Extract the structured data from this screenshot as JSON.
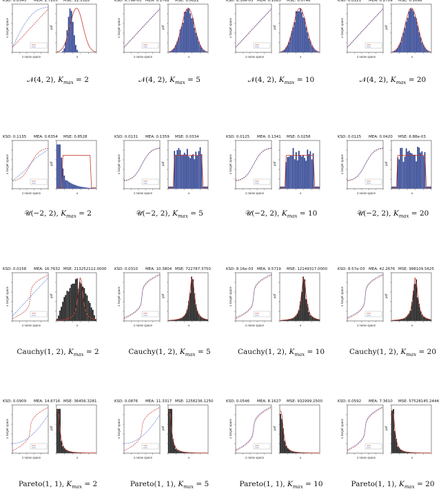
{
  "figure": {
    "panels": [
      {
        "stats": {
          "ksd": "KSD: 0.0545",
          "mea": "MEA: 2.7205",
          "mse": "MSE: 11.5528"
        },
        "dist": "𝒩(4, 2)",
        "kmax": "2",
        "pdf_shape": "normal",
        "fit": "skewed"
      },
      {
        "stats": {
          "ksd": "KSD: 6.78e-03",
          "mea": "MEA: 0.1762",
          "mse": "MSE: 0.0622"
        },
        "dist": "𝒩(4, 2)",
        "kmax": "5",
        "pdf_shape": "normal",
        "fit": "good"
      },
      {
        "stats": {
          "ksd": "KSD: 8.30e-03",
          "mea": "MEA: 0.1085",
          "mse": "MSE: 0.0748"
        },
        "dist": "𝒩(4, 2)",
        "kmax": "10",
        "pdf_shape": "normal",
        "fit": "good"
      },
      {
        "stats": {
          "ksd": "KSD: 0.0121",
          "mea": "MEA: 0.2709",
          "mse": "MSE: 0.1698"
        },
        "dist": "𝒩(4, 2)",
        "kmax": "20",
        "pdf_shape": "normal",
        "fit": "good"
      },
      {
        "stats": {
          "ksd": "KSD: 0.1135",
          "mea": "MEA: 0.6354",
          "mse": "MSE: 0.8528"
        },
        "dist": "𝒰(−2, 2)",
        "kmax": "2",
        "pdf_shape": "uniform",
        "fit": "skewed"
      },
      {
        "stats": {
          "ksd": "KSD: 0.0131",
          "mea": "MEA: 0.1359",
          "mse": "MSE: 0.0334"
        },
        "dist": "𝒰(−2, 2)",
        "kmax": "5",
        "pdf_shape": "uniform",
        "fit": "good"
      },
      {
        "stats": {
          "ksd": "KSD: 0.0125",
          "mea": "MEA: 0.1341",
          "mse": "MSE: 0.0258"
        },
        "dist": "𝒰(−2, 2)",
        "kmax": "10",
        "pdf_shape": "uniform",
        "fit": "good"
      },
      {
        "stats": {
          "ksd": "KSD: 0.0125",
          "mea": "MEA: 0.0420",
          "mse": "MSE: 6.88e-03"
        },
        "dist": "𝒰(−2, 2)",
        "kmax": "20",
        "pdf_shape": "uniform",
        "fit": "good"
      },
      {
        "stats": {
          "ksd": "KSD: 0.0158",
          "mea": "MEA: 16.7632",
          "mse": "MSE: 213252112.0000"
        },
        "dist": "Cauchy(1, 2)",
        "kmax": "2",
        "pdf_shape": "cauchy",
        "fit": "skewed"
      },
      {
        "stats": {
          "ksd": "KSD: 0.0310",
          "mea": "MEA: 10.3804",
          "mse": "MSE: 722787.3750"
        },
        "dist": "Cauchy(1, 2)",
        "kmax": "5",
        "pdf_shape": "cauchy",
        "fit": "good"
      },
      {
        "stats": {
          "ksd": "KSD: 8.16e-03",
          "mea": "MEA: 9.5719",
          "mse": "MSE: 12149317.0000"
        },
        "dist": "Cauchy(1, 2)",
        "kmax": "10",
        "pdf_shape": "cauchy",
        "fit": "good"
      },
      {
        "stats": {
          "ksd": "KSD: 8.57e-03",
          "mea": "MEA: 42.2676",
          "mse": "MSE: 998109.5625"
        },
        "dist": "Cauchy(1, 2)",
        "kmax": "20",
        "pdf_shape": "cauchy",
        "fit": "good"
      },
      {
        "stats": {
          "ksd": "KSD: 0.0909",
          "mea": "MEA: 14.6716",
          "mse": "MSE: 36456.3281"
        },
        "dist": "Pareto(1, 1)",
        "kmax": "2",
        "pdf_shape": "pareto",
        "fit": "skewed"
      },
      {
        "stats": {
          "ksd": "KSD: 0.0876",
          "mea": "MEA: 11.3317",
          "mse": "MSE: 1258236.1250"
        },
        "dist": "Pareto(1, 1)",
        "kmax": "5",
        "pdf_shape": "pareto",
        "fit": "skewed"
      },
      {
        "stats": {
          "ksd": "KSD: 0.0546",
          "mea": "MEA: 8.1627",
          "mse": "MSE: 932999.2500"
        },
        "dist": "Pareto(1, 1)",
        "kmax": "10",
        "pdf_shape": "pareto",
        "fit": "good"
      },
      {
        "stats": {
          "ksd": "KSD: 0.0592",
          "mea": "MEA: 7.3610",
          "mse": "MSE: 57528145.2444"
        },
        "dist": "Pareto(1, 1)",
        "kmax": "20",
        "pdf_shape": "pareto",
        "fit": "good"
      }
    ],
    "axis_labels": {
      "left_y": "x target space",
      "left_x": "z noise space",
      "right_y": "pdf",
      "right_x": "x"
    },
    "colors": {
      "bars": "#2a3f8f",
      "bars_dark": "#111111",
      "true": "#c0392b",
      "flow": "#5b7bd5"
    }
  }
}
